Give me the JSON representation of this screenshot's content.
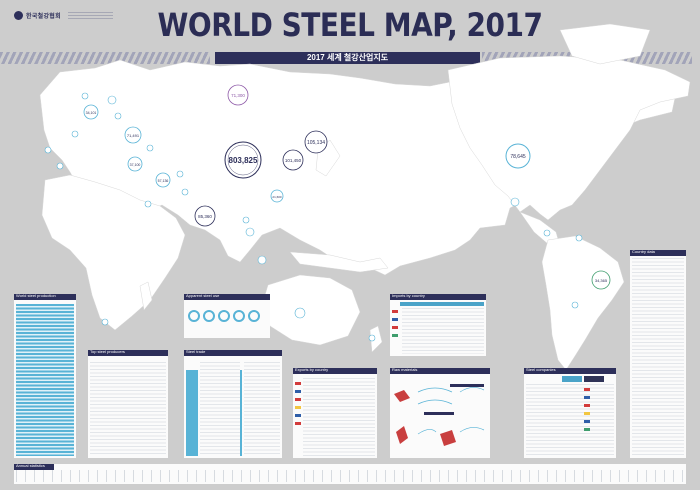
{
  "logo": {
    "name": "한국철강협회"
  },
  "header": {
    "title": "WORLD STEEL MAP, 2017",
    "subtitle": "2017 세계 철강산업지도"
  },
  "map": {
    "bubbles": [
      {
        "label": "803,825",
        "region": "China"
      },
      {
        "label": "105,134",
        "region": "Japan"
      },
      {
        "label": "101,450",
        "region": "India"
      },
      {
        "label": "85,360",
        "region": "South East"
      },
      {
        "label": "78,645",
        "region": "USA"
      },
      {
        "label": "71,300",
        "region": "Russia North"
      },
      {
        "label": "71,491",
        "region": "Europe"
      },
      {
        "label": "34,101",
        "region": "Germany"
      },
      {
        "label": "37,100",
        "region": "Turkey"
      },
      {
        "label": "57,136",
        "region": "Middle East"
      },
      {
        "label": "34,365",
        "region": "Brazil"
      },
      {
        "label": "21,600",
        "region": "Korea"
      }
    ]
  },
  "panels": [
    {
      "id": "world-production",
      "title": "World steel production"
    },
    {
      "id": "top-producers",
      "title": "Top steel producers"
    },
    {
      "id": "consumption",
      "title": "Apparent steel use"
    },
    {
      "id": "trade",
      "title": "Steel trade"
    },
    {
      "id": "exports",
      "title": "Exports by country"
    },
    {
      "id": "imports",
      "title": "Imports by country"
    },
    {
      "id": "raw-material",
      "title": "Raw materials"
    },
    {
      "id": "companies",
      "title": "Steel companies"
    },
    {
      "id": "country-data",
      "title": "Country data"
    },
    {
      "id": "annual",
      "title": "Annual statistics"
    }
  ],
  "colors": {
    "navy": "#2d2f5a",
    "land": "#ffffff",
    "ocean": "#cdcdcd",
    "accent": "#58b3d6"
  }
}
